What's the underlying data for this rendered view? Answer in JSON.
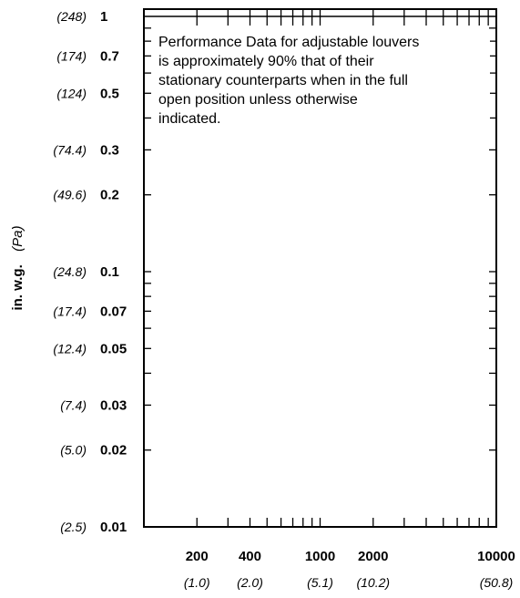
{
  "chart_data": {
    "type": "line",
    "x_scale": "log",
    "y_scale": "log",
    "xlim": [
      100,
      10000
    ],
    "ylim": [
      0.01,
      1
    ],
    "grid": false,
    "series": [],
    "y_label_primary": "in. w.g.",
    "y_label_secondary": "(Pa)",
    "y_ticks": [
      {
        "value": 1,
        "primary": "1",
        "secondary": "(248)"
      },
      {
        "value": 0.7,
        "primary": "0.7",
        "secondary": "(174)"
      },
      {
        "value": 0.5,
        "primary": "0.5",
        "secondary": "(124)"
      },
      {
        "value": 0.3,
        "primary": "0.3",
        "secondary": "(74.4)"
      },
      {
        "value": 0.2,
        "primary": "0.2",
        "secondary": "(49.6)"
      },
      {
        "value": 0.1,
        "primary": "0.1",
        "secondary": "(24.8)"
      },
      {
        "value": 0.07,
        "primary": "0.07",
        "secondary": "(17.4)"
      },
      {
        "value": 0.05,
        "primary": "0.05",
        "secondary": "(12.4)"
      },
      {
        "value": 0.03,
        "primary": "0.03",
        "secondary": "(7.4)"
      },
      {
        "value": 0.02,
        "primary": "0.02",
        "secondary": "(5.0)"
      },
      {
        "value": 0.01,
        "primary": "0.01",
        "secondary": "(2.5)"
      }
    ],
    "x_ticks": [
      {
        "value": 200,
        "primary": "200",
        "secondary": "(1.0)"
      },
      {
        "value": 400,
        "primary": "400",
        "secondary": "(2.0)"
      },
      {
        "value": 1000,
        "primary": "1000",
        "secondary": "(5.1)"
      },
      {
        "value": 2000,
        "primary": "2000",
        "secondary": "(10.2)"
      },
      {
        "value": 10000,
        "primary": "10000",
        "secondary": "(50.8)"
      }
    ],
    "x_minor_ticks": [
      200,
      300,
      400,
      500,
      600,
      700,
      800,
      900,
      1000,
      2000,
      3000,
      4000,
      5000,
      6000,
      7000,
      8000,
      9000
    ],
    "y_minor_ticks": [
      0.02,
      0.03,
      0.04,
      0.05,
      0.06,
      0.07,
      0.08,
      0.09,
      0.1,
      0.2,
      0.3,
      0.4,
      0.5,
      0.6,
      0.7,
      0.8,
      0.9
    ],
    "annotation": [
      "Performance Data for adjustable louvers",
      "is approximately 90% that of their",
      "stationary counterparts when in the full",
      "open position unless otherwise",
      "indicated."
    ]
  }
}
